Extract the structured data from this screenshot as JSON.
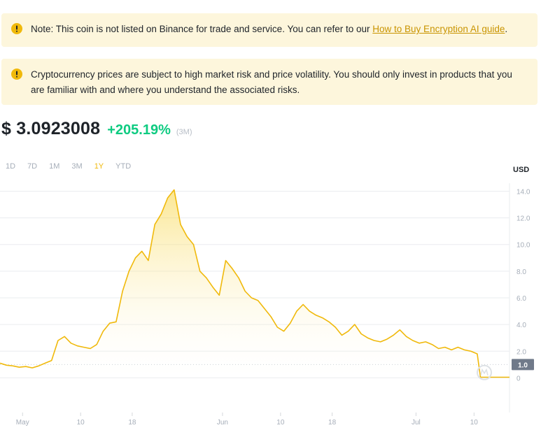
{
  "notices": {
    "listing": {
      "text": "Note: This coin is not listed on Binance for trade and service. You can refer to our ",
      "link": "How to Buy Encryption AI guide",
      "suffix": "."
    },
    "risk": {
      "text": "Cryptocurrency prices are subject to high market risk and price volatility. You should only invest in products that you are familiar with and where you understand the associated risks."
    },
    "icon": "warning-circle-icon",
    "bg_color": "#fdf6dc",
    "icon_color": "#f0b90b"
  },
  "price": {
    "value": "$ 3.0923008",
    "change": "+205.19%",
    "period": "(3M)",
    "change_color": "#0ecb81"
  },
  "ranges": [
    "1D",
    "7D",
    "1M",
    "3M",
    "1Y",
    "YTD"
  ],
  "active_range": "1Y",
  "chart_data": {
    "type": "area",
    "unit_label": "USD",
    "y_ticks": [
      "14.0",
      "12.0",
      "10.0",
      "8.0",
      "6.0",
      "4.0",
      "2.0",
      "0"
    ],
    "y_tick_values": [
      14,
      12,
      10,
      8,
      6,
      4,
      2,
      0
    ],
    "ylim": [
      -2.6,
      14.6
    ],
    "x_ticks": [
      {
        "label": "May",
        "day": 0
      },
      {
        "label": "10",
        "day": 9
      },
      {
        "label": "18",
        "day": 17
      },
      {
        "label": "Jun",
        "day": 31
      },
      {
        "label": "10",
        "day": 40
      },
      {
        "label": "18",
        "day": 48
      },
      {
        "label": "Jul",
        "day": 61
      },
      {
        "label": "10",
        "day": 70
      }
    ],
    "xlim": [
      -3.5,
      75.5
    ],
    "reference_price": 1.0,
    "reference_label": "1.0",
    "line_color": "#f0b90b",
    "series": [
      {
        "values": [
          [
            -3.5,
            1.1
          ],
          [
            -2.5,
            0.95
          ],
          [
            -1.5,
            0.9
          ],
          [
            -0.5,
            0.8
          ],
          [
            0.5,
            0.85
          ],
          [
            1.5,
            0.75
          ],
          [
            2.5,
            0.9
          ],
          [
            3.5,
            1.1
          ],
          [
            4.5,
            1.3
          ],
          [
            5.5,
            2.8
          ],
          [
            6.5,
            3.1
          ],
          [
            7.5,
            2.6
          ],
          [
            8.5,
            2.4
          ],
          [
            9.5,
            2.3
          ],
          [
            10.5,
            2.2
          ],
          [
            11.5,
            2.5
          ],
          [
            12.5,
            3.5
          ],
          [
            13.5,
            4.1
          ],
          [
            14.5,
            4.2
          ],
          [
            15.5,
            6.5
          ],
          [
            16.5,
            8.0
          ],
          [
            17.5,
            9.0
          ],
          [
            18.5,
            9.5
          ],
          [
            19.5,
            8.8
          ],
          [
            20.5,
            11.5
          ],
          [
            21.5,
            12.3
          ],
          [
            22.5,
            13.5
          ],
          [
            23.5,
            14.1
          ],
          [
            24.5,
            11.5
          ],
          [
            25.5,
            10.6
          ],
          [
            26.5,
            10.0
          ],
          [
            27.5,
            8.0
          ],
          [
            28.5,
            7.5
          ],
          [
            29.5,
            6.8
          ],
          [
            30.5,
            6.2
          ],
          [
            31.5,
            8.8
          ],
          [
            32.5,
            8.2
          ],
          [
            33.5,
            7.5
          ],
          [
            34.5,
            6.5
          ],
          [
            35.5,
            6.0
          ],
          [
            36.5,
            5.8
          ],
          [
            37.5,
            5.2
          ],
          [
            38.5,
            4.6
          ],
          [
            39.5,
            3.8
          ],
          [
            40.5,
            3.5
          ],
          [
            41.5,
            4.1
          ],
          [
            42.5,
            5.0
          ],
          [
            43.5,
            5.5
          ],
          [
            44.5,
            5.0
          ],
          [
            45.5,
            4.7
          ],
          [
            46.5,
            4.5
          ],
          [
            47.5,
            4.2
          ],
          [
            48.5,
            3.8
          ],
          [
            49.5,
            3.2
          ],
          [
            50.5,
            3.5
          ],
          [
            51.5,
            4.0
          ],
          [
            52.5,
            3.3
          ],
          [
            53.5,
            3.0
          ],
          [
            54.5,
            2.8
          ],
          [
            55.5,
            2.7
          ],
          [
            56.5,
            2.9
          ],
          [
            57.5,
            3.2
          ],
          [
            58.5,
            3.6
          ],
          [
            59.5,
            3.1
          ],
          [
            60.5,
            2.8
          ],
          [
            61.5,
            2.6
          ],
          [
            62.5,
            2.7
          ],
          [
            63.5,
            2.5
          ],
          [
            64.5,
            2.2
          ],
          [
            65.5,
            2.3
          ],
          [
            66.5,
            2.1
          ],
          [
            67.5,
            2.3
          ],
          [
            68.5,
            2.1
          ],
          [
            69.5,
            2.0
          ],
          [
            70.5,
            1.8
          ],
          [
            71,
            0.05
          ],
          [
            72.5,
            0.05
          ],
          [
            74.5,
            0.05
          ],
          [
            75.5,
            0.05
          ]
        ]
      }
    ]
  },
  "watermark_icon": "coinmarketcap-logo-icon"
}
